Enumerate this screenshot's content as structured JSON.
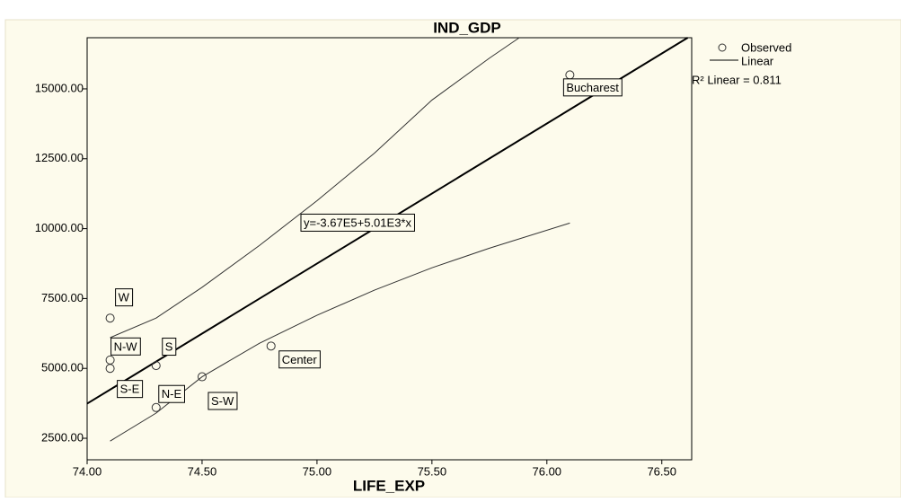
{
  "chart_data": {
    "type": "scatter",
    "title": "IND_GDP",
    "x_label": "LIFE_EXP",
    "series": [
      {
        "name": "Observed",
        "color": "#333333",
        "x": [
          76.1,
          74.8,
          74.5,
          74.3,
          74.3,
          74.1,
          74.1,
          74.1
        ],
        "values": [
          15500,
          5800,
          4700,
          3600,
          5100,
          6800,
          5300,
          5000
        ],
        "point_labels": [
          "Bucharest",
          "Center",
          "S-W",
          "N-E",
          "S",
          "W",
          "N-W",
          "S-E"
        ]
      },
      {
        "name": "Linear",
        "color": "#000000",
        "intercept": -367000,
        "slope": 5010,
        "equation": "y=-3.67E5+5.01E3*x",
        "r2_label": "R² Linear = 0.811"
      }
    ],
    "upper_ci": {
      "x": [
        74.1,
        74.3,
        74.5,
        74.75,
        75.0,
        75.25,
        75.5,
        75.75,
        75.88
      ],
      "values": [
        6100,
        6800,
        7900,
        9400,
        11000,
        12700,
        14600,
        16100,
        16830
      ]
    },
    "lower_ci": {
      "x": [
        74.1,
        74.3,
        74.5,
        74.75,
        75.0,
        75.25,
        75.5,
        75.75,
        76.1
      ],
      "values": [
        2400,
        3400,
        4700,
        5900,
        6900,
        7800,
        8600,
        9300,
        10200
      ]
    },
    "xlim": [
      74.0,
      76.63
    ],
    "ylim": [
      1730,
      16830
    ],
    "xticks": [
      {
        "value": 74.0,
        "label": "74.00"
      },
      {
        "value": 74.5,
        "label": "74.50"
      },
      {
        "value": 75.0,
        "label": "75.00"
      },
      {
        "value": 75.5,
        "label": "75.50"
      },
      {
        "value": 76.0,
        "label": "76.00"
      },
      {
        "value": 76.5,
        "label": "76.50"
      }
    ],
    "yticks": [
      {
        "value": 2500,
        "label": "2500.00"
      },
      {
        "value": 5000,
        "label": "5000.00"
      },
      {
        "value": 7500,
        "label": "7500.00"
      },
      {
        "value": 10000,
        "label": "10000.00"
      },
      {
        "value": 12500,
        "label": "12500.00"
      },
      {
        "value": 15000,
        "label": "15000.00"
      }
    ],
    "grid": false
  }
}
